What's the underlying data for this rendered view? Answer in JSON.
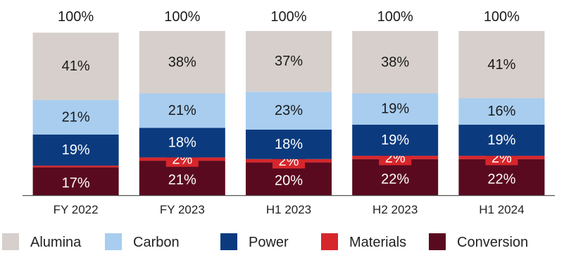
{
  "chart_data": {
    "type": "bar",
    "stacked": true,
    "percent_stacked": true,
    "categories": [
      "FY 2022",
      "FY 2023",
      "H1 2023",
      "H2 2023",
      "H1 2024"
    ],
    "totals": [
      "100%",
      "100%",
      "100%",
      "100%",
      "100%"
    ],
    "series": [
      {
        "name": "Conversion",
        "color": "#5a0a1f",
        "values": [
          17,
          21,
          20,
          22,
          22
        ],
        "labels": [
          "17%",
          "21%",
          "20%",
          "22%",
          "22%"
        ]
      },
      {
        "name": "Materials",
        "color": "#d7262b",
        "values": [
          1,
          2,
          2,
          2,
          2
        ],
        "labels": [
          "",
          "2%",
          "2%",
          "2%",
          "2%"
        ]
      },
      {
        "name": "Power",
        "color": "#0b3b7e",
        "values": [
          19,
          18,
          18,
          19,
          19
        ],
        "labels": [
          "19%",
          "18%",
          "18%",
          "19%",
          "19%"
        ]
      },
      {
        "name": "Carbon",
        "color": "#a8cdef",
        "values": [
          21,
          21,
          23,
          19,
          16
        ],
        "labels": [
          "21%",
          "21%",
          "23%",
          "19%",
          "16%"
        ]
      },
      {
        "name": "Alumina",
        "color": "#d6cfcc",
        "values": [
          41,
          38,
          37,
          38,
          41
        ],
        "labels": [
          "41%",
          "38%",
          "37%",
          "38%",
          "41%"
        ]
      }
    ],
    "legend": [
      "Alumina",
      "Carbon",
      "Power",
      "Materials",
      "Conversion"
    ],
    "legend_position": "bottom",
    "ylim": [
      0,
      100
    ],
    "grid": false,
    "title": "",
    "xlabel": "",
    "ylabel": ""
  }
}
